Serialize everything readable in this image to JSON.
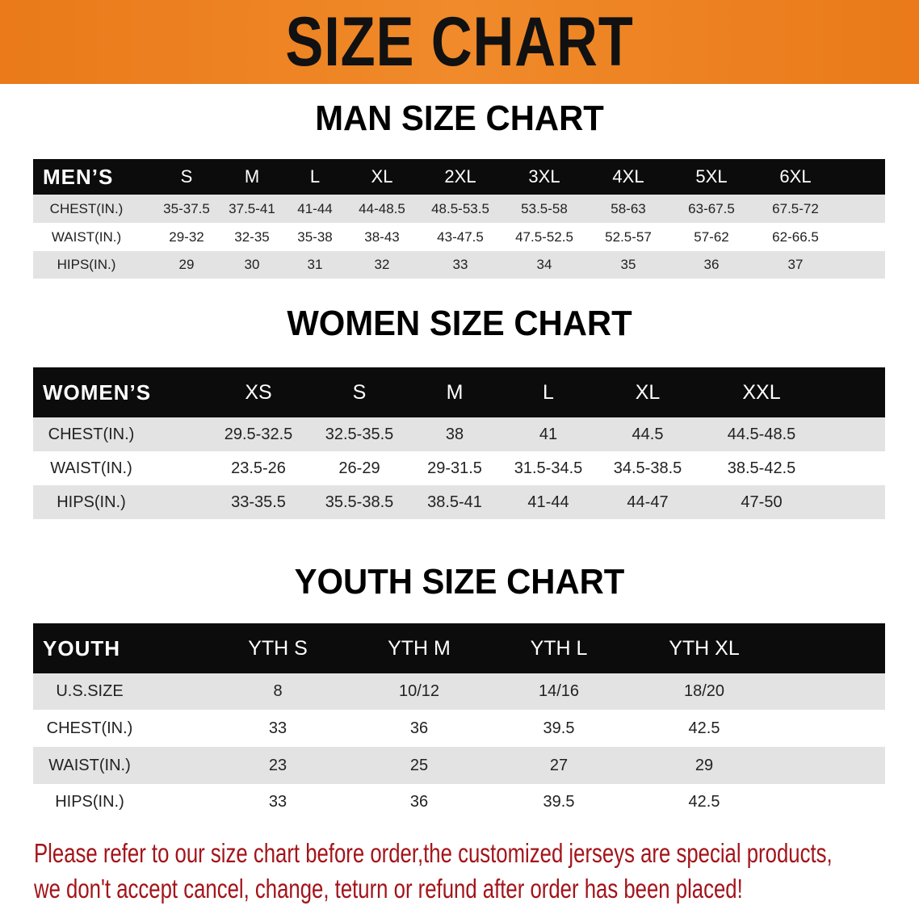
{
  "banner": {
    "title": "SIZE CHART",
    "color": "#ea7a1a"
  },
  "men": {
    "title": "MAN SIZE CHART",
    "header_label": "MEN’S",
    "sizes": [
      "S",
      "M",
      "L",
      "XL",
      "2XL",
      "3XL",
      "4XL",
      "5XL",
      "6XL"
    ],
    "rows": [
      {
        "label": "CHEST(IN.)",
        "values": [
          "35-37.5",
          "37.5-41",
          "41-44",
          "44-48.5",
          "48.5-53.5",
          "53.5-58",
          "58-63",
          "63-67.5",
          "67.5-72"
        ]
      },
      {
        "label": "WAIST(IN.)",
        "values": [
          "29-32",
          "32-35",
          "35-38",
          "38-43",
          "43-47.5",
          "47.5-52.5",
          "52.5-57",
          "57-62",
          "62-66.5"
        ]
      },
      {
        "label": "HIPS(IN.)",
        "values": [
          "29",
          "30",
          "31",
          "32",
          "33",
          "34",
          "35",
          "36",
          "37"
        ]
      }
    ]
  },
  "women": {
    "title": "WOMEN SIZE CHART",
    "header_label": "WOMEN’S",
    "sizes": [
      "XS",
      "S",
      "M",
      "L",
      "XL",
      "XXL"
    ],
    "rows": [
      {
        "label": "CHEST(IN.)",
        "values": [
          "29.5-32.5",
          "32.5-35.5",
          "38",
          "41",
          "44.5",
          "44.5-48.5"
        ]
      },
      {
        "label": "WAIST(IN.)",
        "values": [
          "23.5-26",
          "26-29",
          "29-31.5",
          "31.5-34.5",
          "34.5-38.5",
          "38.5-42.5"
        ]
      },
      {
        "label": "HIPS(IN.)",
        "values": [
          "33-35.5",
          "35.5-38.5",
          "38.5-41",
          "41-44",
          "44-47",
          "47-50"
        ]
      }
    ]
  },
  "youth": {
    "title": "YOUTH SIZE CHART",
    "header_label": "YOUTH",
    "sizes": [
      "YTH S",
      "YTH M",
      "YTH L",
      "YTH XL"
    ],
    "rows": [
      {
        "label": "U.S.SIZE",
        "values": [
          "8",
          "10/12",
          "14/16",
          "18/20"
        ]
      },
      {
        "label": "CHEST(IN.)",
        "values": [
          "33",
          "36",
          "39.5",
          "42.5"
        ]
      },
      {
        "label": "WAIST(IN.)",
        "values": [
          "23",
          "25",
          "27",
          "29"
        ]
      },
      {
        "label": "HIPS(IN.)",
        "values": [
          "33",
          "36",
          "39.5",
          "42.5"
        ]
      }
    ]
  },
  "footer": {
    "line1": "Please refer to our size chart before order,the customized jerseys are special products,",
    "line2": "we don't accept cancel, change, teturn or refund after order has been placed!",
    "color": "#a3141a"
  }
}
